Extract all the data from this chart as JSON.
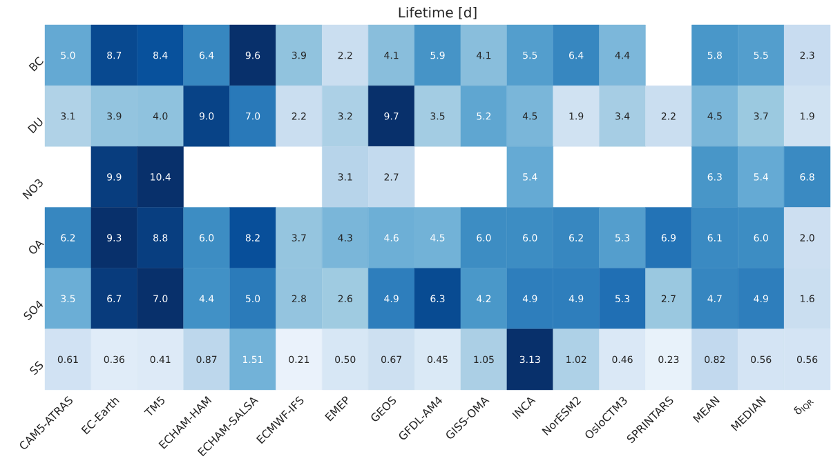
{
  "chart_data": {
    "type": "heatmap",
    "title": "Lifetime [d]",
    "categories": [
      "CAM5-ATRAS",
      "EC-Earth",
      "TM5",
      "ECHAM-HAM",
      "ECHAM-SALSA",
      "ECMWF-IFS",
      "EMEP",
      "GEOS",
      "GFDL-AM4",
      "GISS-OMA",
      "INCA",
      "NorESM2",
      "OsloCTM3",
      "SPRINTARS",
      "MEAN",
      "MEDIAN",
      "δ$_{IQR}$"
    ],
    "y_categories": [
      "BC",
      "DU",
      "NO3",
      "OA",
      "SO4",
      "SS"
    ],
    "cells": [
      [
        5.0,
        8.7,
        8.4,
        6.4,
        9.6,
        3.9,
        2.2,
        4.1,
        5.9,
        4.1,
        5.5,
        6.4,
        4.4,
        null,
        5.8,
        5.5,
        2.3
      ],
      [
        3.1,
        3.9,
        4.0,
        9.0,
        7.0,
        2.2,
        3.2,
        9.7,
        3.5,
        5.2,
        4.5,
        1.9,
        3.4,
        2.2,
        4.5,
        3.7,
        1.9
      ],
      [
        null,
        9.9,
        10.4,
        null,
        null,
        null,
        3.1,
        2.7,
        null,
        null,
        5.4,
        null,
        null,
        null,
        6.3,
        5.4,
        6.8
      ],
      [
        6.2,
        9.3,
        8.8,
        6.0,
        8.2,
        3.7,
        4.3,
        4.6,
        4.5,
        6.0,
        6.0,
        6.2,
        5.3,
        6.9,
        6.1,
        6.0,
        2.0
      ],
      [
        3.5,
        6.7,
        7.0,
        4.4,
        5.0,
        2.8,
        2.6,
        4.9,
        6.3,
        4.2,
        4.9,
        4.9,
        5.3,
        2.7,
        4.7,
        4.9,
        1.6
      ],
      [
        0.61,
        0.36,
        0.41,
        0.87,
        1.51,
        0.21,
        0.5,
        0.67,
        0.45,
        1.05,
        3.13,
        1.02,
        0.46,
        0.23,
        0.82,
        0.56,
        0.56
      ]
    ],
    "cell_labels": [
      [
        "5.0",
        "8.7",
        "8.4",
        "6.4",
        "9.6",
        "3.9",
        "2.2",
        "4.1",
        "5.9",
        "4.1",
        "5.5",
        "6.4",
        "4.4",
        null,
        "5.8",
        "5.5",
        "2.3"
      ],
      [
        "3.1",
        "3.9",
        "4.0",
        "9.0",
        "7.0",
        "2.2",
        "3.2",
        "9.7",
        "3.5",
        "5.2",
        "4.5",
        "1.9",
        "3.4",
        "2.2",
        "4.5",
        "3.7",
        "1.9"
      ],
      [
        null,
        "9.9",
        "10.4",
        null,
        null,
        null,
        "3.1",
        "2.7",
        null,
        null,
        "5.4",
        null,
        null,
        null,
        "6.3",
        "5.4",
        "6.8"
      ],
      [
        "6.2",
        "9.3",
        "8.8",
        "6.0",
        "8.2",
        "3.7",
        "4.3",
        "4.6",
        "4.5",
        "6.0",
        "6.0",
        "6.2",
        "5.3",
        "6.9",
        "6.1",
        "6.0",
        "2.0"
      ],
      [
        "3.5",
        "6.7",
        "7.0",
        "4.4",
        "5.0",
        "2.8",
        "2.6",
        "4.9",
        "6.3",
        "4.2",
        "4.9",
        "4.9",
        "5.3",
        "2.7",
        "4.7",
        "4.9",
        "1.6"
      ],
      [
        "0.61",
        "0.36",
        "0.41",
        "0.87",
        "1.51",
        "0.21",
        "0.50",
        "0.67",
        "0.45",
        "1.05",
        "3.13",
        "1.02",
        "0.46",
        "0.23",
        "0.82",
        "0.56",
        "0.56"
      ]
    ]
  }
}
